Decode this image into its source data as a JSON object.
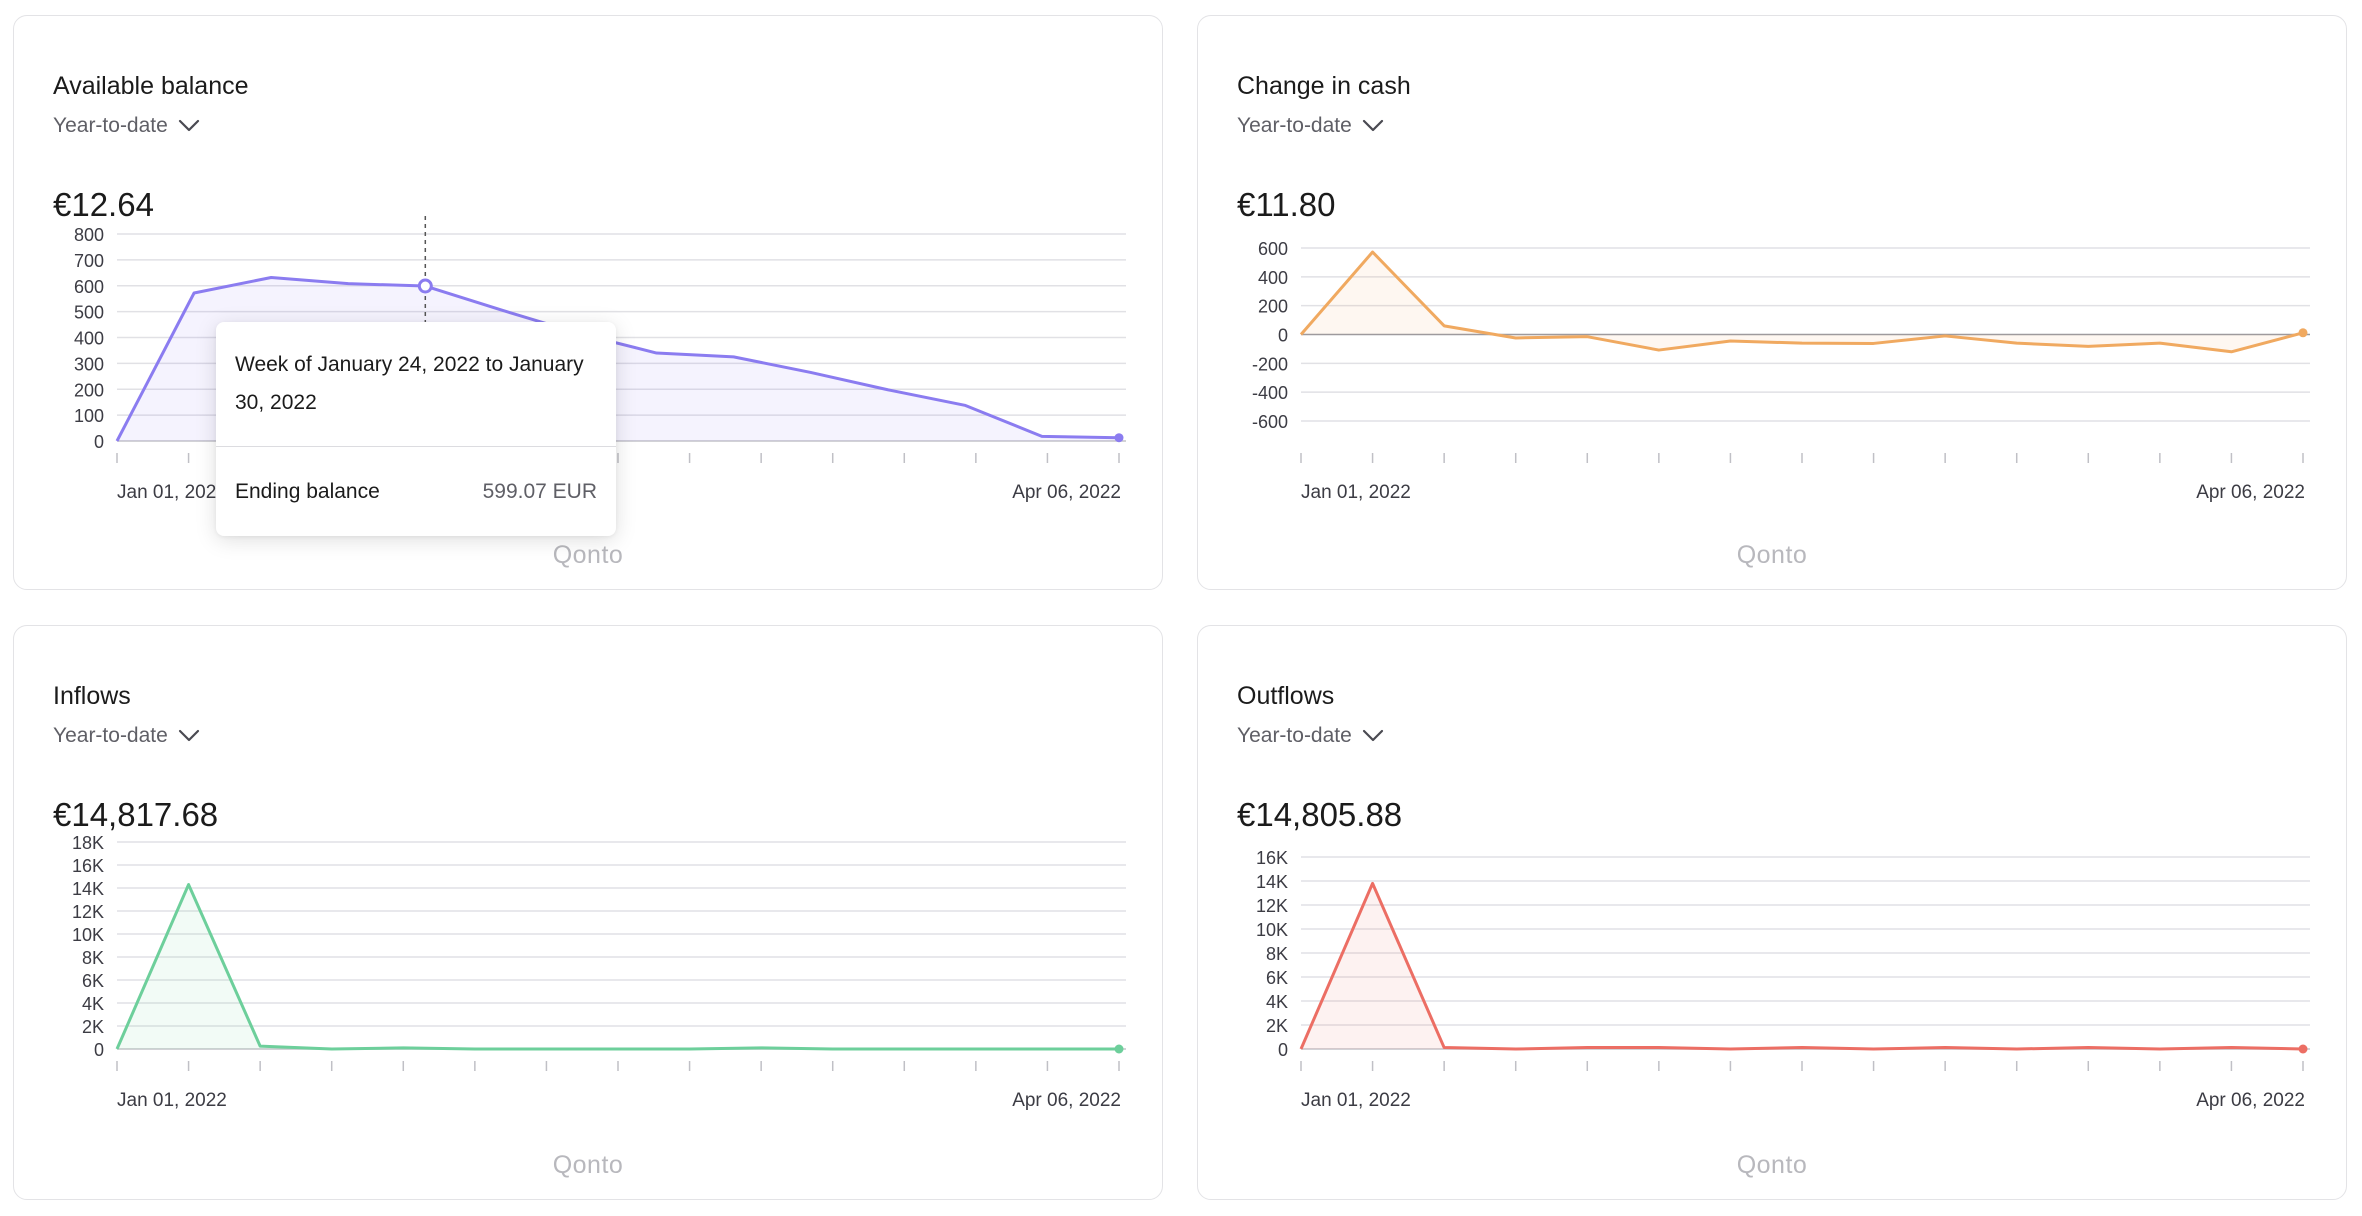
{
  "cards": [
    {
      "title": "Available balance",
      "period": "Year-to-date",
      "amount": "€12.64",
      "brand": "Qonto"
    },
    {
      "title": "Change in cash",
      "period": "Year-to-date",
      "amount": "€11.80",
      "brand": "Qonto"
    },
    {
      "title": "Inflows",
      "period": "Year-to-date",
      "amount": "€14,817.68",
      "brand": "Qonto"
    },
    {
      "title": "Outflows",
      "period": "Year-to-date",
      "amount": "€14,805.88",
      "brand": "Qonto"
    }
  ],
  "tooltip": {
    "week": "Week of January 24, 2022 to January 30, 2022",
    "label": "Ending balance",
    "value": "599.07 EUR"
  },
  "chart_data": [
    {
      "type": "area",
      "color": "#8b7cf0",
      "x_labels": [
        "Jan 01, 2022",
        "Apr 06, 2022"
      ],
      "y_ticks": [
        0,
        100,
        200,
        300,
        400,
        500,
        600,
        700,
        800
      ],
      "y_tick_labels": [
        "0",
        "100",
        "200",
        "300",
        "400",
        "500",
        "600",
        "700",
        "800"
      ],
      "ylim": [
        0,
        800
      ],
      "values": [
        0,
        572,
        632,
        608,
        599,
        505,
        415,
        340,
        325,
        265,
        198,
        138,
        18,
        12.64
      ],
      "highlight_index": 4,
      "grid": true
    },
    {
      "type": "area",
      "color": "#f0a960",
      "x_labels": [
        "Jan 01, 2022",
        "Apr 06, 2022"
      ],
      "y_ticks": [
        -600,
        -400,
        -200,
        0,
        200,
        400,
        600
      ],
      "y_tick_labels": [
        "-600",
        "-400",
        "-200",
        "0",
        "200",
        "400",
        "600"
      ],
      "ylim": [
        -600,
        600
      ],
      "values": [
        0,
        572,
        60,
        -24,
        -15,
        -108,
        -45,
        -60,
        -62,
        -10,
        -60,
        -82,
        -60,
        -120,
        11.8
      ],
      "grid": true
    },
    {
      "type": "area",
      "color": "#6dcf9b",
      "x_labels": [
        "Jan 01, 2022",
        "Apr 06, 2022"
      ],
      "y_ticks": [
        0,
        2000,
        4000,
        6000,
        8000,
        10000,
        12000,
        14000,
        16000,
        18000
      ],
      "y_tick_labels": [
        "0",
        "2K",
        "4K",
        "6K",
        "8K",
        "10K",
        "12K",
        "14K",
        "16K",
        "18K"
      ],
      "ylim": [
        0,
        18000
      ],
      "values": [
        0,
        14300,
        250,
        0,
        100,
        0,
        0,
        0,
        0,
        100,
        0,
        0,
        0,
        0,
        0
      ],
      "grid": true
    },
    {
      "type": "area",
      "color": "#ec6e64",
      "x_labels": [
        "Jan 01, 2022",
        "Apr 06, 2022"
      ],
      "y_ticks": [
        0,
        2000,
        4000,
        6000,
        8000,
        10000,
        12000,
        14000,
        16000
      ],
      "y_tick_labels": [
        "0",
        "2K",
        "4K",
        "6K",
        "8K",
        "10K",
        "12K",
        "14K",
        "16K"
      ],
      "ylim": [
        0,
        16000
      ],
      "values": [
        0,
        13800,
        120,
        0,
        120,
        120,
        0,
        120,
        0,
        120,
        0,
        120,
        0,
        120,
        0
      ],
      "grid": true
    }
  ]
}
